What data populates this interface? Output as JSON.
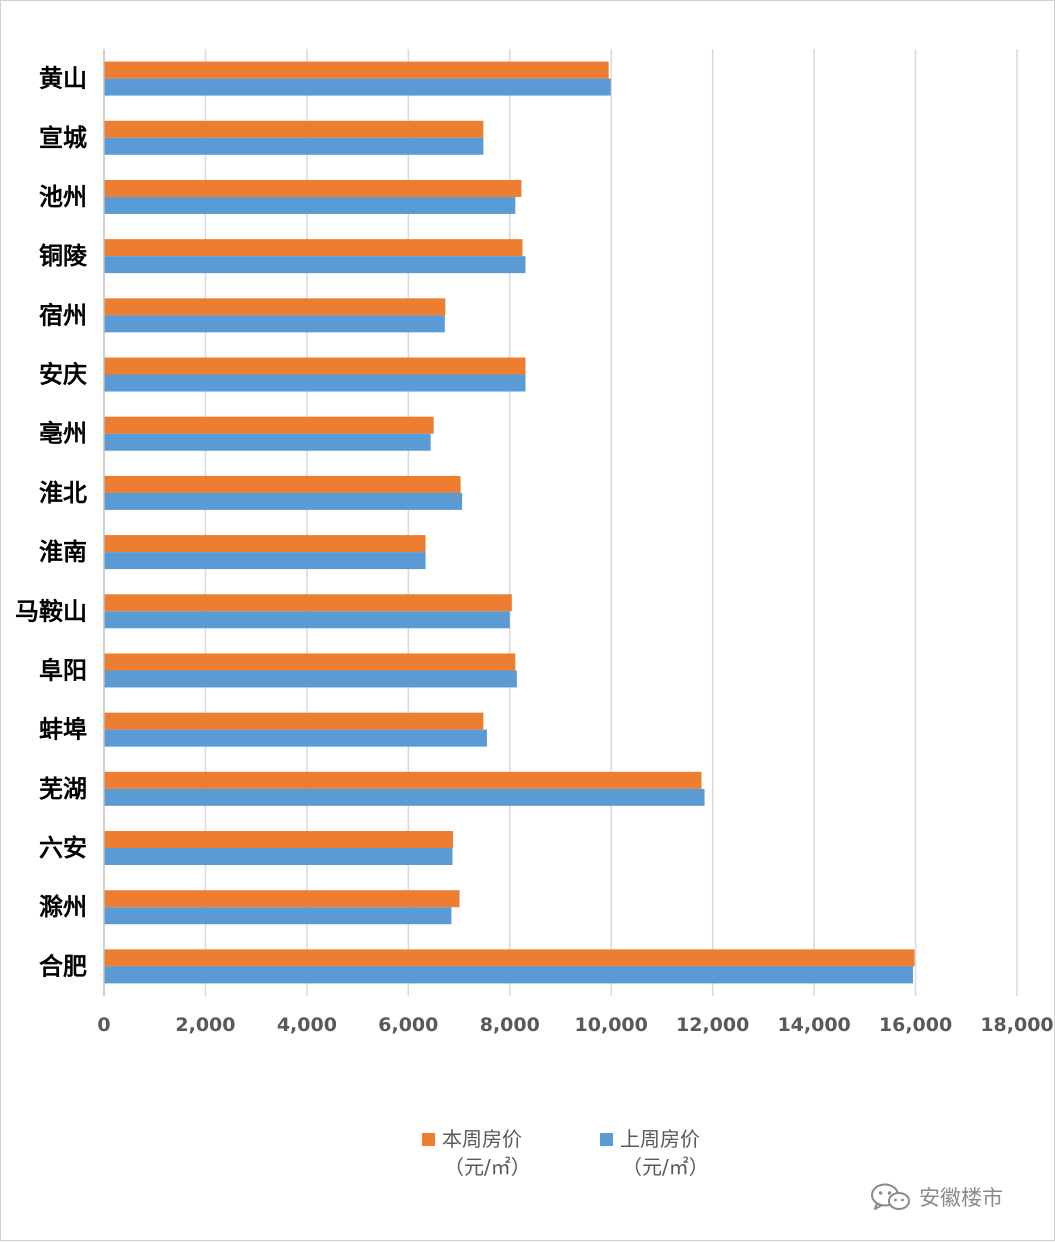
{
  "chart_data": {
    "type": "bar",
    "orientation": "horizontal",
    "categories": [
      "黄山",
      "宣城",
      "池州",
      "铜陵",
      "宿州",
      "安庆",
      "亳州",
      "淮北",
      "淮南",
      "马鞍山",
      "阜阳",
      "蚌埠",
      "芜湖",
      "六安",
      "滁州",
      "合肥"
    ],
    "series": [
      {
        "name": "本周房价",
        "unit": "（元/㎡）",
        "color": "#ED7D31",
        "values": [
          9950,
          7480,
          8230,
          8250,
          6730,
          8310,
          6500,
          7030,
          6340,
          8040,
          8110,
          7480,
          11780,
          6880,
          7010,
          15980
        ]
      },
      {
        "name": "上周房价",
        "unit": "（元/㎡）",
        "color": "#5B9BD5",
        "values": [
          9990,
          7480,
          8110,
          8310,
          6720,
          8310,
          6440,
          7060,
          6340,
          8000,
          8140,
          7550,
          11840,
          6870,
          6850,
          15950
        ]
      }
    ],
    "xlim": [
      0,
      18000
    ],
    "xticks": [
      "0",
      "2,000",
      "4,000",
      "6,000",
      "8,000",
      "10,000",
      "12,000",
      "14,000",
      "16,000",
      "18,000"
    ],
    "grid": true,
    "legend_position": "bottom",
    "title": "",
    "xlabel": "",
    "ylabel": ""
  },
  "watermark": {
    "text": "安徽楼市",
    "icon": "wechat-icon"
  }
}
